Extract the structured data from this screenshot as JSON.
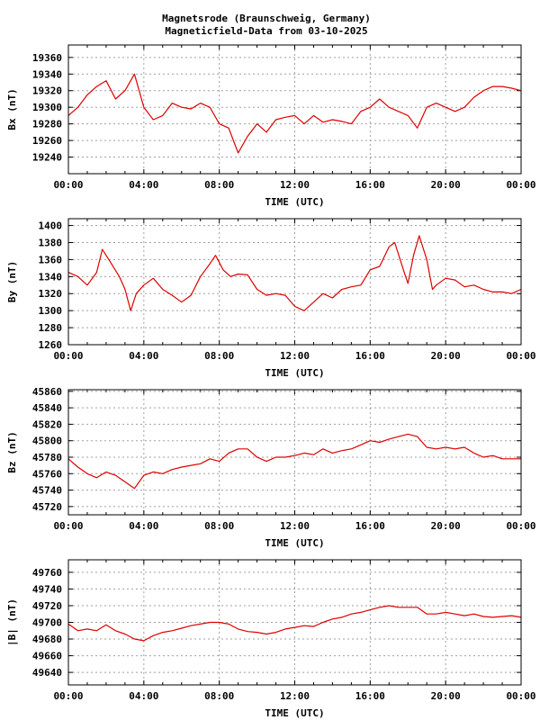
{
  "title": "Magnetsrode (Braunschweig, Germany)",
  "subtitle": "Magneticfield-Data from 03-10-2025",
  "colors": {
    "line": "#dd0000",
    "grid": "#a0a0a0",
    "axis": "#000000",
    "background": "#ffffff"
  },
  "chart_data": [
    {
      "type": "line",
      "ylabel": "Bx (nT)",
      "xlabel": "TIME (UTC)",
      "x_ticks": [
        "00:00",
        "04:00",
        "08:00",
        "12:00",
        "16:00",
        "20:00",
        "00:00"
      ],
      "y_ticks": [
        19240,
        19260,
        19280,
        19300,
        19320,
        19340,
        19360
      ],
      "ylim": [
        19220,
        19375
      ],
      "xlim_hours": [
        0,
        24
      ],
      "grid": true,
      "series": [
        {
          "x": [
            0.0,
            0.5,
            1.0,
            1.5,
            2.0,
            2.5,
            3.0,
            3.5,
            4.0,
            4.5,
            5.0,
            5.5,
            6.0,
            6.5,
            7.0,
            7.5,
            8.0,
            8.5,
            9.0,
            9.5,
            10.0,
            10.5,
            11.0,
            11.5,
            12.0,
            12.5,
            13.0,
            13.5,
            14.0,
            14.5,
            15.0,
            15.5,
            16.0,
            16.5,
            17.0,
            17.5,
            18.0,
            18.5,
            19.0,
            19.5,
            20.0,
            20.5,
            21.0,
            21.5,
            22.0,
            22.5,
            23.0,
            23.5,
            24.0
          ],
          "y": [
            19290,
            19300,
            19315,
            19325,
            19332,
            19310,
            19320,
            19340,
            19300,
            19285,
            19290,
            19305,
            19300,
            19298,
            19305,
            19300,
            19280,
            19275,
            19245,
            19265,
            19280,
            19270,
            19285,
            19288,
            19290,
            19280,
            19290,
            19282,
            19285,
            19283,
            19280,
            19295,
            19300,
            19310,
            19300,
            19295,
            19290,
            19275,
            19300,
            19305,
            19300,
            19295,
            19300,
            19312,
            19320,
            19325,
            19325,
            19323,
            19320
          ]
        }
      ]
    },
    {
      "type": "line",
      "ylabel": "By (nT)",
      "xlabel": "TIME (UTC)",
      "x_ticks": [
        "00:00",
        "04:00",
        "08:00",
        "12:00",
        "16:00",
        "20:00",
        "00:00"
      ],
      "y_ticks": [
        1260,
        1280,
        1300,
        1320,
        1340,
        1360,
        1380,
        1400
      ],
      "ylim": [
        1260,
        1408
      ],
      "xlim_hours": [
        0,
        24
      ],
      "grid": true,
      "series": [
        {
          "x": [
            0.0,
            0.5,
            1.0,
            1.5,
            1.8,
            2.2,
            2.7,
            3.0,
            3.3,
            3.6,
            4.0,
            4.5,
            5.0,
            5.5,
            6.0,
            6.5,
            7.0,
            7.5,
            7.8,
            8.2,
            8.6,
            9.0,
            9.5,
            10.0,
            10.5,
            11.0,
            11.5,
            12.0,
            12.5,
            13.0,
            13.5,
            14.0,
            14.5,
            15.0,
            15.5,
            16.0,
            16.5,
            17.0,
            17.3,
            17.8,
            18.0,
            18.3,
            18.6,
            19.0,
            19.3,
            19.5,
            20.0,
            20.5,
            21.0,
            21.5,
            22.0,
            22.5,
            23.0,
            23.5,
            24.0
          ],
          "y": [
            1345,
            1340,
            1330,
            1345,
            1372,
            1358,
            1340,
            1325,
            1300,
            1320,
            1330,
            1338,
            1325,
            1318,
            1310,
            1318,
            1340,
            1355,
            1365,
            1348,
            1340,
            1343,
            1342,
            1325,
            1318,
            1320,
            1318,
            1305,
            1300,
            1310,
            1320,
            1315,
            1325,
            1328,
            1330,
            1348,
            1352,
            1375,
            1380,
            1345,
            1332,
            1365,
            1388,
            1360,
            1325,
            1330,
            1338,
            1336,
            1328,
            1330,
            1325,
            1322,
            1322,
            1320,
            1325
          ]
        }
      ]
    },
    {
      "type": "line",
      "ylabel": "Bz (nT)",
      "xlabel": "TIME (UTC)",
      "x_ticks": [
        "00:00",
        "04:00",
        "08:00",
        "12:00",
        "16:00",
        "20:00",
        "00:00"
      ],
      "y_ticks": [
        45720,
        45740,
        45760,
        45780,
        45800,
        45820,
        45840,
        45860
      ],
      "ylim": [
        45710,
        45862
      ],
      "xlim_hours": [
        0,
        24
      ],
      "grid": true,
      "series": [
        {
          "x": [
            0.0,
            0.5,
            1.0,
            1.5,
            2.0,
            2.5,
            3.0,
            3.5,
            4.0,
            4.5,
            5.0,
            5.5,
            6.0,
            6.5,
            7.0,
            7.5,
            8.0,
            8.5,
            9.0,
            9.5,
            10.0,
            10.5,
            11.0,
            11.5,
            12.0,
            12.5,
            13.0,
            13.5,
            14.0,
            14.5,
            15.0,
            15.5,
            16.0,
            16.5,
            17.0,
            17.5,
            18.0,
            18.5,
            19.0,
            19.5,
            20.0,
            20.5,
            21.0,
            21.5,
            22.0,
            22.5,
            23.0,
            23.5,
            24.0
          ],
          "y": [
            45778,
            45768,
            45760,
            45755,
            45762,
            45758,
            45750,
            45742,
            45758,
            45762,
            45760,
            45765,
            45768,
            45770,
            45772,
            45778,
            45775,
            45785,
            45790,
            45790,
            45780,
            45775,
            45780,
            45780,
            45782,
            45785,
            45783,
            45790,
            45785,
            45788,
            45790,
            45795,
            45800,
            45798,
            45802,
            45805,
            45808,
            45805,
            45792,
            45790,
            45792,
            45790,
            45792,
            45785,
            45780,
            45782,
            45778,
            45778,
            45778
          ]
        }
      ]
    },
    {
      "type": "line",
      "ylabel": "|B| (nT)",
      "xlabel": "TIME (UTC)",
      "x_ticks": [
        "00:00",
        "04:00",
        "08:00",
        "12:00",
        "16:00",
        "20:00",
        "00:00"
      ],
      "y_ticks": [
        49640,
        49660,
        49680,
        49700,
        49720,
        49740,
        49760
      ],
      "ylim": [
        49625,
        49775
      ],
      "xlim_hours": [
        0,
        24
      ],
      "grid": true,
      "series": [
        {
          "x": [
            0.0,
            0.5,
            1.0,
            1.5,
            2.0,
            2.5,
            3.0,
            3.5,
            4.0,
            4.5,
            5.0,
            5.5,
            6.0,
            6.5,
            7.0,
            7.5,
            8.0,
            8.5,
            9.0,
            9.5,
            10.0,
            10.5,
            11.0,
            11.5,
            12.0,
            12.5,
            13.0,
            13.5,
            14.0,
            14.5,
            15.0,
            15.5,
            16.0,
            16.5,
            17.0,
            17.5,
            18.0,
            18.5,
            19.0,
            19.5,
            20.0,
            20.5,
            21.0,
            21.5,
            22.0,
            22.5,
            23.0,
            23.5,
            24.0
          ],
          "y": [
            49698,
            49690,
            49692,
            49690,
            49697,
            49690,
            49686,
            49680,
            49678,
            49684,
            49688,
            49690,
            49693,
            49696,
            49698,
            49700,
            49700,
            49698,
            49692,
            49689,
            49688,
            49686,
            49688,
            49692,
            49694,
            49696,
            49695,
            49700,
            49704,
            49706,
            49710,
            49712,
            49715,
            49718,
            49720,
            49718,
            49718,
            49718,
            49710,
            49710,
            49712,
            49710,
            49708,
            49710,
            49707,
            49706,
            49707,
            49708,
            49706
          ]
        }
      ]
    }
  ]
}
